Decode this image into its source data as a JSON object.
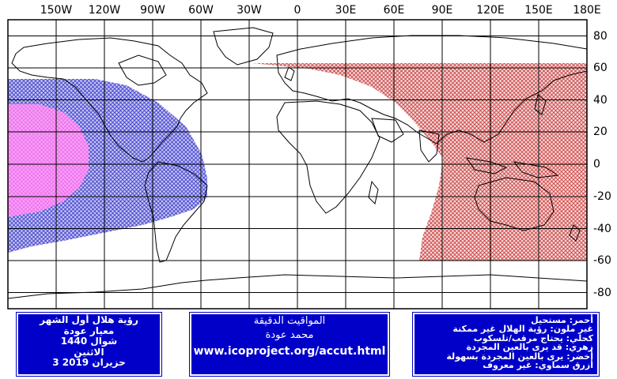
{
  "map": {
    "longitude_labels": [
      "150W",
      "120W",
      "90W",
      "60W",
      "30W",
      "0",
      "30E",
      "60E",
      "90E",
      "120E",
      "150E",
      "180E"
    ],
    "latitude_labels": [
      "80",
      "60",
      "40",
      "20",
      "0",
      "-20",
      "-40",
      "-60",
      "-80"
    ],
    "colors": {
      "red_zone": "#cc3333",
      "blue_zone": "#3333cc",
      "magenta_zone": "#ee66ee",
      "grid": "#000000",
      "coast": "#000000"
    }
  },
  "box_left": {
    "lines": [
      "رؤية هلال أول الشهر",
      "معيار عودة",
      "شوال 1440",
      "الاثنين",
      "3 حزيران 2019"
    ]
  },
  "box_middle": {
    "title": "المواقيت الدقيقة",
    "author": "محمد عودة",
    "url": "www.icoproject.org/accut.html"
  },
  "box_right": {
    "legend": [
      "أحمر: مستحيل",
      "غير ملون: رؤية الهلال غير ممكنة",
      "كحلي: يحتاج مرقب/تلسكوب",
      "زهري: قد يرى بالعين المجردة",
      "أخضر: يرى بالعين المجردة بسهولة",
      "أزرق سماوي: غير معروف"
    ]
  }
}
